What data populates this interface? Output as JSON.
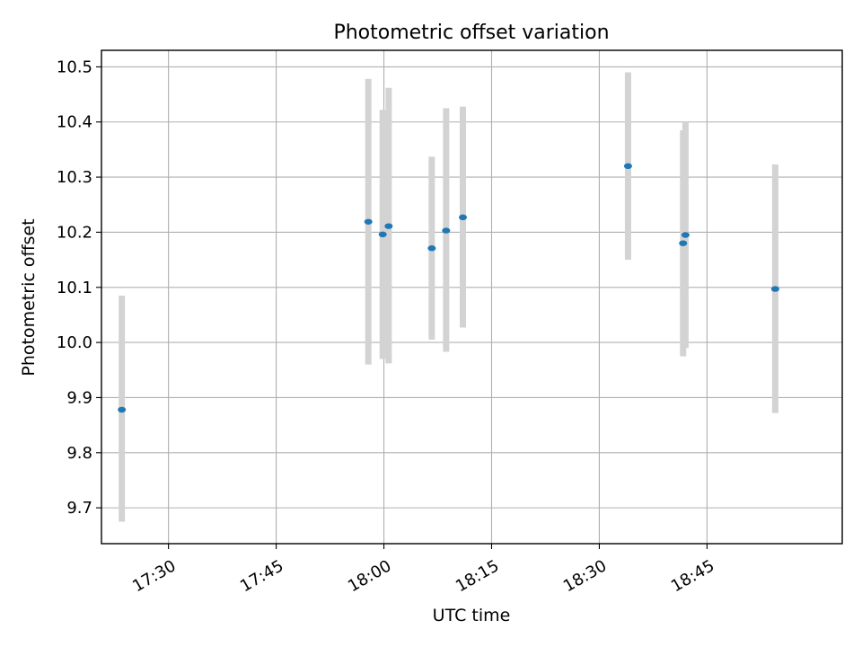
{
  "chart_data": {
    "type": "scatter",
    "title": "Photometric offset variation",
    "xlabel": "UTC time",
    "ylabel": "Photometric offset",
    "x_axis": {
      "kind": "time",
      "range": [
        "17:20:40",
        "19:03:50"
      ],
      "ticks": [
        "17:30",
        "17:45",
        "18:00",
        "18:15",
        "18:30",
        "18:45"
      ]
    },
    "y_axis": {
      "range": [
        9.635,
        10.53
      ],
      "ticks": [
        "9.7",
        "9.8",
        "9.9",
        "10.0",
        "10.1",
        "10.2",
        "10.3",
        "10.4",
        "10.5"
      ]
    },
    "grid": true,
    "errorbar_color": "#d3d3d3",
    "marker_color": "#1f77b4",
    "points": [
      {
        "time": "17:23:30",
        "y": 9.878,
        "low": 9.675,
        "high": 10.085
      },
      {
        "time": "17:57:50",
        "y": 10.219,
        "low": 9.96,
        "high": 10.478
      },
      {
        "time": "17:59:50",
        "y": 10.196,
        "low": 9.97,
        "high": 10.422
      },
      {
        "time": "18:00:40",
        "y": 10.211,
        "low": 9.962,
        "high": 10.462
      },
      {
        "time": "18:06:40",
        "y": 10.171,
        "low": 10.005,
        "high": 10.337
      },
      {
        "time": "18:08:40",
        "y": 10.203,
        "low": 9.983,
        "high": 10.425
      },
      {
        "time": "18:11:00",
        "y": 10.227,
        "low": 10.027,
        "high": 10.428
      },
      {
        "time": "18:34:00",
        "y": 10.32,
        "low": 10.15,
        "high": 10.49
      },
      {
        "time": "18:41:40",
        "y": 10.18,
        "low": 9.975,
        "high": 10.385
      },
      {
        "time": "18:42:00",
        "y": 10.195,
        "low": 9.99,
        "high": 10.4
      },
      {
        "time": "18:54:30",
        "y": 10.097,
        "low": 9.872,
        "high": 10.323
      }
    ]
  }
}
